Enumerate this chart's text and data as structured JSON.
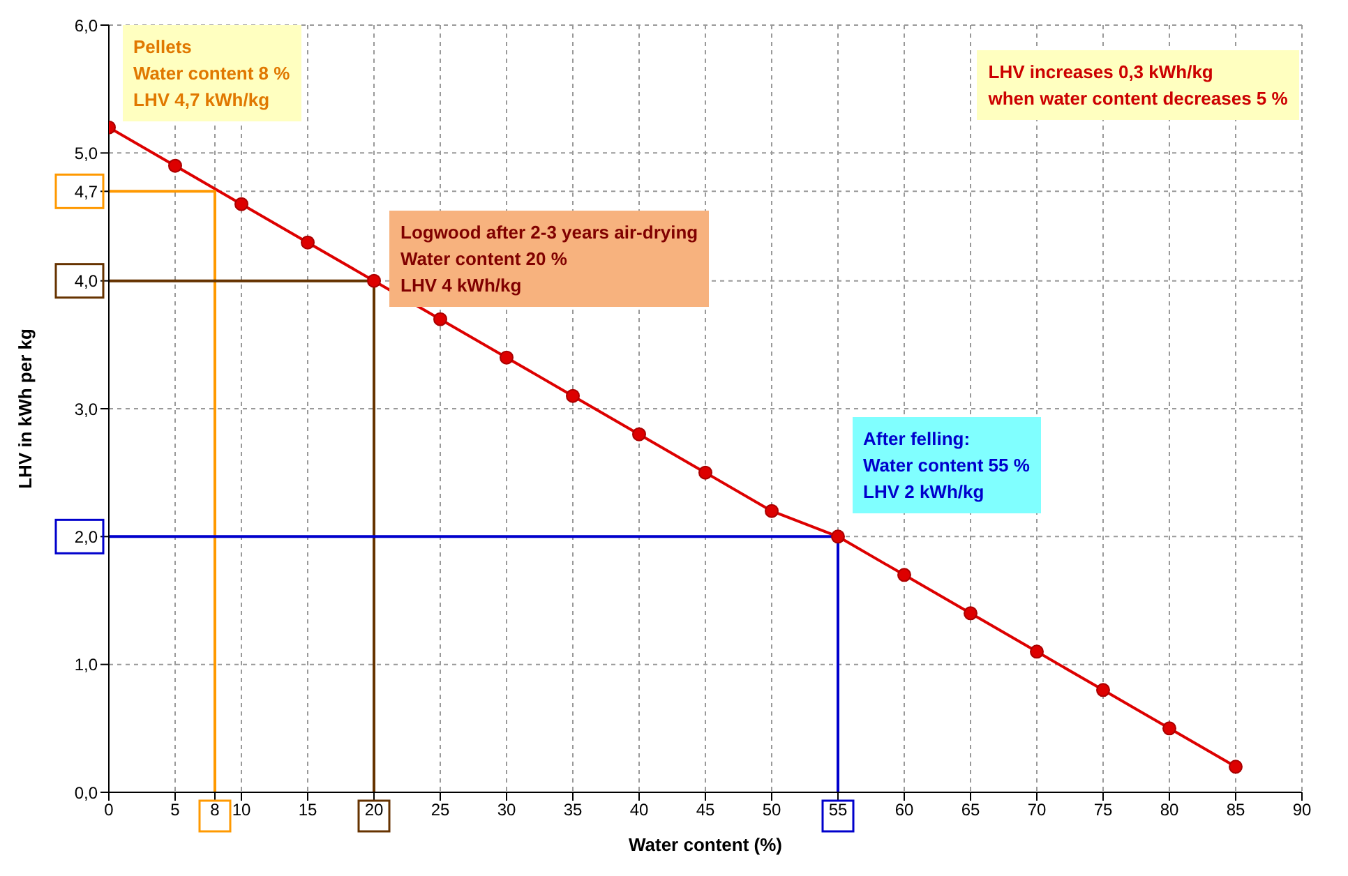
{
  "chart_data": {
    "type": "line",
    "xlabel": "Water content (%)",
    "ylabel": "LHV in kWh per kg",
    "x": [
      0,
      5,
      10,
      15,
      20,
      25,
      30,
      35,
      40,
      45,
      50,
      55,
      60,
      65,
      70,
      75,
      80,
      85
    ],
    "series": [
      {
        "color": "#dd0000",
        "values": [
          5.2,
          4.9,
          4.6,
          4.3,
          4.0,
          3.7,
          3.4,
          3.1,
          2.8,
          2.5,
          2.2,
          2.0,
          1.7,
          1.4,
          1.1,
          0.8,
          0.5,
          0.2
        ]
      },
      {
        "type": "line",
        "marker": "none",
        "color": "#ff9900",
        "x": [
          8,
          8,
          0
        ],
        "values": [
          0,
          4.7,
          4.7
        ]
      },
      {
        "type": "line",
        "marker": "none",
        "color": "#663300",
        "x": [
          20,
          20,
          0
        ],
        "values": [
          0,
          4.0,
          4.0
        ]
      },
      {
        "type": "line",
        "marker": "none",
        "color": "#0000cc",
        "x": [
          55,
          55,
          0
        ],
        "values": [
          0,
          2.0,
          2.0
        ]
      }
    ],
    "xlim": [
      0,
      90
    ],
    "ylim": [
      0,
      6
    ],
    "xticks": [
      0,
      5,
      8,
      10,
      15,
      20,
      25,
      30,
      35,
      40,
      45,
      50,
      55,
      60,
      65,
      70,
      75,
      80,
      85,
      90
    ],
    "yticks": [
      {
        "value": 0,
        "label": "0,0"
      },
      {
        "value": 1,
        "label": "1,0"
      },
      {
        "value": 2,
        "label": "2,0"
      },
      {
        "value": 3,
        "label": "3,0"
      },
      {
        "value": 4,
        "label": "4,0"
      },
      {
        "value": 4.7,
        "label": "4,7"
      },
      {
        "value": 5,
        "label": "5,0"
      },
      {
        "value": 6,
        "label": "6,0"
      }
    ],
    "grid": true,
    "marker": "circle",
    "line_style": "solid",
    "legend": false,
    "annotations": [
      "Pellets\nWater content 8 %\nLHV 4,7 kWh/kg",
      {
        "text": "Logwood after 2-3 years air-drying\nWater content 20 %\nLHV 4 kWh/kg",
        "x": 20,
        "y": 4.0
      },
      {
        "text": "After felling:\nWater content 55 %\nLHV 2 kWh/kg",
        "x": 55,
        "y": 2.0
      },
      "LHV increases 0,3 kWh/kg\nwhen water content decreases 5 %"
    ]
  }
}
